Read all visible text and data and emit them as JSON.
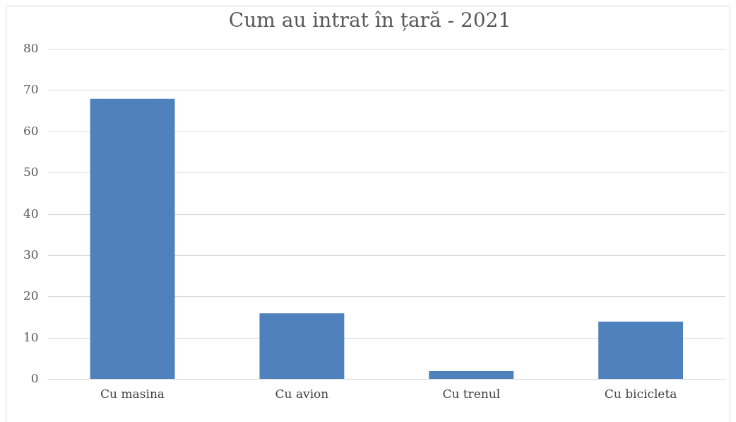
{
  "chart_data": {
    "type": "bar",
    "title": "Cum au intrat în țară - 2021",
    "categories": [
      "Cu masina",
      "Cu avion",
      "Cu trenul",
      "Cu bicicleta"
    ],
    "values": [
      68,
      16,
      2,
      14
    ],
    "color": "#4f81bd",
    "ylim": [
      0,
      80
    ],
    "yticks": [
      0,
      10,
      20,
      30,
      40,
      50,
      60,
      70,
      80
    ],
    "grid": "y",
    "legend": false
  }
}
